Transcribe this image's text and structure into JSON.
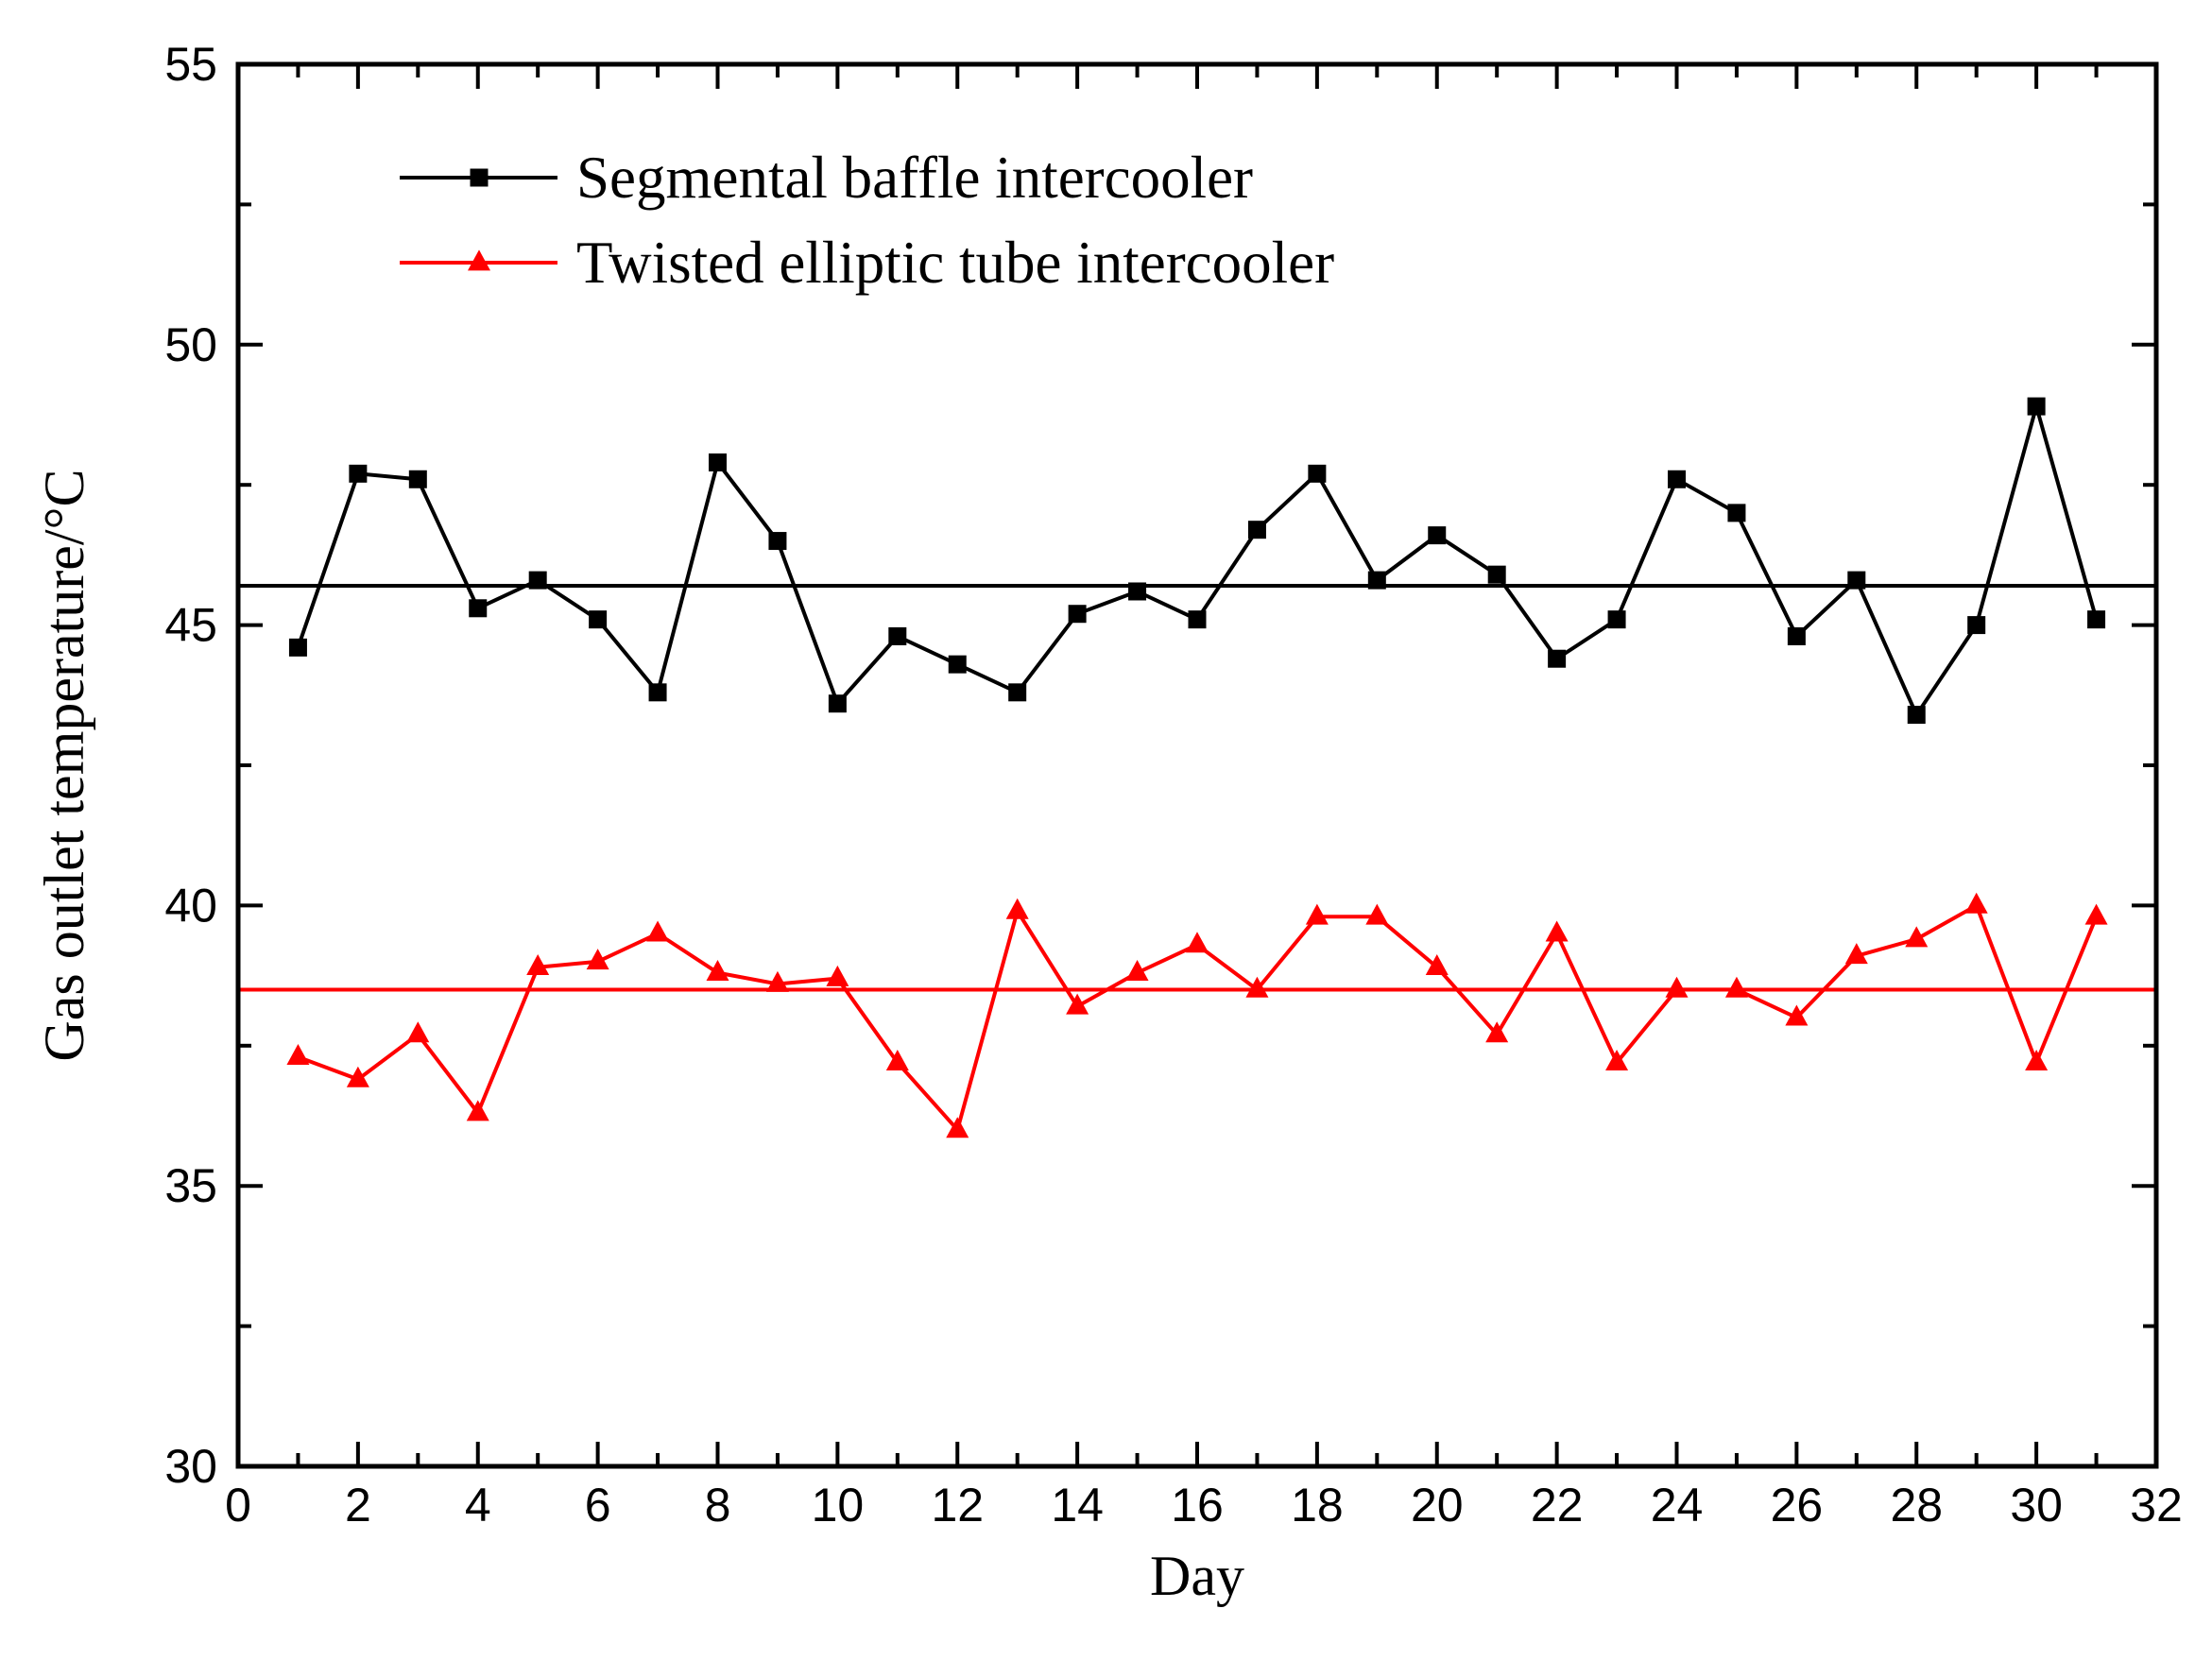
{
  "chart_data": {
    "type": "line",
    "title": "",
    "xlabel": "Day",
    "ylabel": "Gas outlet temperature/°C",
    "xlim": [
      0,
      32
    ],
    "ylim": [
      30,
      55
    ],
    "x_ticks": [
      0,
      2,
      4,
      6,
      8,
      10,
      12,
      14,
      16,
      18,
      20,
      22,
      24,
      26,
      28,
      30,
      32
    ],
    "y_ticks": [
      30,
      35,
      40,
      45,
      50,
      55
    ],
    "x_minor_step": 1,
    "y_minor_step": 2.5,
    "grid": false,
    "legend_position": "top-left",
    "x": [
      1,
      2,
      3,
      4,
      5,
      6,
      7,
      8,
      9,
      10,
      11,
      12,
      13,
      14,
      15,
      16,
      17,
      18,
      19,
      20,
      21,
      22,
      23,
      24,
      25,
      26,
      27,
      28,
      29,
      30,
      31
    ],
    "series": [
      {
        "name": "Segmental baffle intercooler",
        "color": "#000000",
        "marker": "square",
        "values": [
          44.6,
          47.7,
          47.6,
          45.3,
          45.8,
          45.1,
          43.8,
          47.9,
          46.5,
          43.6,
          44.8,
          44.3,
          43.8,
          45.2,
          45.6,
          45.1,
          46.7,
          47.7,
          45.8,
          46.6,
          45.9,
          44.4,
          45.1,
          47.6,
          47.0,
          44.8,
          45.8,
          43.4,
          45.0,
          48.9,
          45.1
        ],
        "mean_line": 45.7
      },
      {
        "name": "Twisted elliptic tube intercooler",
        "color": "#ff0000",
        "marker": "triangle",
        "values": [
          37.3,
          36.9,
          37.7,
          36.3,
          38.9,
          39.0,
          39.5,
          38.8,
          38.6,
          38.7,
          37.2,
          36.0,
          39.9,
          38.2,
          38.8,
          39.3,
          38.5,
          39.8,
          39.8,
          38.9,
          37.7,
          39.5,
          37.2,
          38.5,
          38.5,
          38.0,
          39.1,
          39.4,
          40.0,
          37.2,
          39.8
        ],
        "mean_line": 38.5
      }
    ]
  }
}
